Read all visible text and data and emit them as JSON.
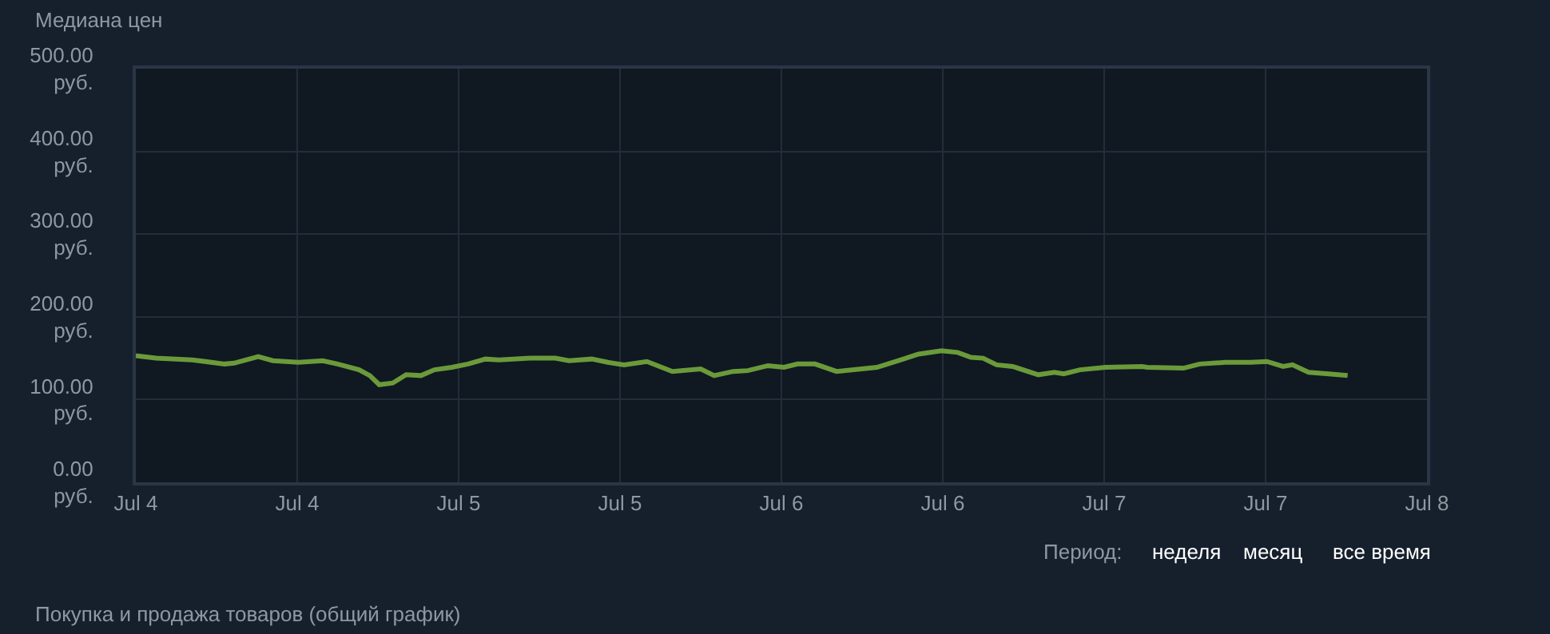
{
  "chart_data": {
    "type": "line",
    "title": "Медиана цен",
    "x": [
      "--07-04T00:00",
      "--07-04T01:30",
      "--07-04T04:12",
      "--07-04T06:36",
      "--07-04T07:18",
      "--07-04T09:06",
      "--07-04T10:12",
      "--07-04T12:06",
      "--07-04T13:54",
      "--07-04T15:00",
      "--07-04T16:36",
      "--07-04T17:24",
      "--07-04T18:06",
      "--07-04T19:06",
      "--07-04T20:06",
      "--07-04T21:12",
      "--07-04T22:12",
      "--07-04T23:30",
      "--07-05T00:42",
      "--07-05T02:00",
      "--07-05T03:00",
      "--07-05T05:18",
      "--07-05T07:12",
      "--07-05T08:12",
      "--07-05T09:54",
      "--07-05T11:06",
      "--07-05T12:18",
      "--07-05T14:00",
      "--07-05T15:54",
      "--07-05T18:00",
      "--07-05T19:00",
      "--07-05T20:24",
      "--07-05T21:30",
      "--07-05T23:00",
      "--07-06T00:12",
      "--07-06T01:12",
      "--07-06T02:30",
      "--07-06T04:06",
      "--07-06T07:06",
      "--07-06T08:42",
      "--07-06T10:12",
      "--07-06T11:54",
      "--07-06T13:06",
      "--07-06T14:06",
      "--07-06T15:00",
      "--07-06T16:00",
      "--07-06T17:12",
      "--07-06T19:06",
      "--07-06T20:18",
      "--07-06T21:00",
      "--07-06T22:12",
      "--07-07T00:06",
      "--07-07T02:48",
      "--07-07T03:12",
      "--07-07T05:54",
      "--07-07T07:06",
      "--07-07T09:00",
      "--07-07T10:54",
      "--07-07T12:06",
      "--07-07T13:18",
      "--07-07T14:00",
      "--07-07T15:12",
      "--07-07T16:42",
      "--07-07T18:06"
    ],
    "series": [
      {
        "color": "#6b9a3a",
        "values": [
          153,
          150,
          148,
          143,
          144,
          152,
          147,
          145,
          147,
          143,
          136,
          129,
          118,
          120,
          130,
          129,
          136,
          139,
          143,
          149,
          148,
          150,
          150,
          147,
          149,
          145,
          142,
          146,
          134,
          137,
          129,
          134,
          135,
          141,
          139,
          143,
          143,
          134,
          139,
          147,
          155,
          159,
          157,
          151,
          150,
          142,
          140,
          130,
          133,
          131,
          136,
          139,
          140,
          139,
          138,
          143,
          145,
          145,
          146,
          140,
          142,
          133,
          131,
          129
        ]
      }
    ],
    "xlim": [
      "--07-04T00:00",
      "--07-08T00:00"
    ],
    "xticks": [
      {
        "value": "--07-04T00:00",
        "label": "Jul 4"
      },
      {
        "value": "--07-04T12:00",
        "label": "Jul 4"
      },
      {
        "value": "--07-05T00:00",
        "label": "Jul 5"
      },
      {
        "value": "--07-05T12:00",
        "label": "Jul 5"
      },
      {
        "value": "--07-06T00:00",
        "label": "Jul 6"
      },
      {
        "value": "--07-06T12:00",
        "label": "Jul 6"
      },
      {
        "value": "--07-07T00:00",
        "label": "Jul 7"
      },
      {
        "value": "--07-07T12:00",
        "label": "Jul 7"
      },
      {
        "value": "--07-08T00:00",
        "label": "Jul 8"
      }
    ],
    "ylim": [
      0,
      500
    ],
    "yticks": [
      {
        "value": 0,
        "label": "0.00\nруб."
      },
      {
        "value": 100,
        "label": "100.00\nруб."
      },
      {
        "value": 200,
        "label": "200.00\nруб."
      },
      {
        "value": 300,
        "label": "300.00\nруб."
      },
      {
        "value": 400,
        "label": "400.00\nруб."
      },
      {
        "value": 500,
        "label": "500.00\nруб."
      }
    ],
    "grid": true,
    "marker": "none",
    "line_style": "solid",
    "annotations": [
      "Период:",
      "неделя",
      "месяц",
      "все время",
      "Покупка и продажа товаров (общий график)"
    ]
  }
}
